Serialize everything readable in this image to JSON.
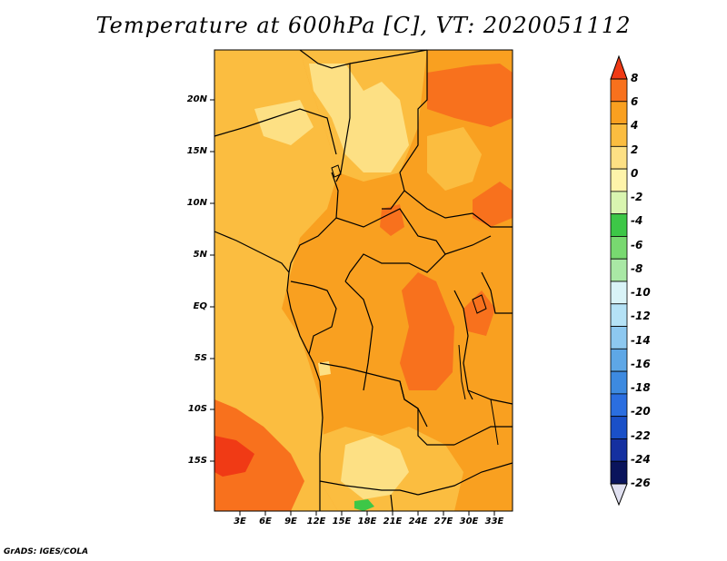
{
  "title": "Temperature at 600hPa [C], VT: 2020051112",
  "footer": "GrADS: IGES/COLA",
  "axes": {
    "y_labels": [
      "20N",
      "15N",
      "10N",
      "5N",
      "EQ",
      "5S",
      "10S",
      "15S"
    ],
    "x_labels": [
      "3E",
      "6E",
      "9E",
      "12E",
      "15E",
      "18E",
      "21E",
      "24E",
      "27E",
      "30E",
      "33E"
    ]
  },
  "colorbar": {
    "labels": [
      "8",
      "6",
      "4",
      "2",
      "0",
      "-2",
      "-4",
      "-6",
      "-8",
      "-10",
      "-12",
      "-14",
      "-16",
      "-18",
      "-20",
      "-22",
      "-24",
      "-26"
    ],
    "colors": [
      "#f03a15",
      "#f8711d",
      "#f9a020",
      "#fbbd40",
      "#fde084",
      "#fef4aa",
      "#d9f5b0",
      "#3dc747",
      "#78d970",
      "#a9e8a5",
      "#d9f3f7",
      "#b5e2f6",
      "#8dc8f0",
      "#5ea7e6",
      "#3d8ae0",
      "#2b6ee0",
      "#1a50c8",
      "#1530a0",
      "#0a145c",
      "#e0e0f0"
    ]
  },
  "palette": {
    "light_yellow": "#fde084",
    "pale_orange": "#fbbd40",
    "orange": "#f9a020",
    "dark_orange": "#f8711d",
    "red_orange": "#f03a15",
    "green": "#3dc747",
    "border": "#000000"
  }
}
